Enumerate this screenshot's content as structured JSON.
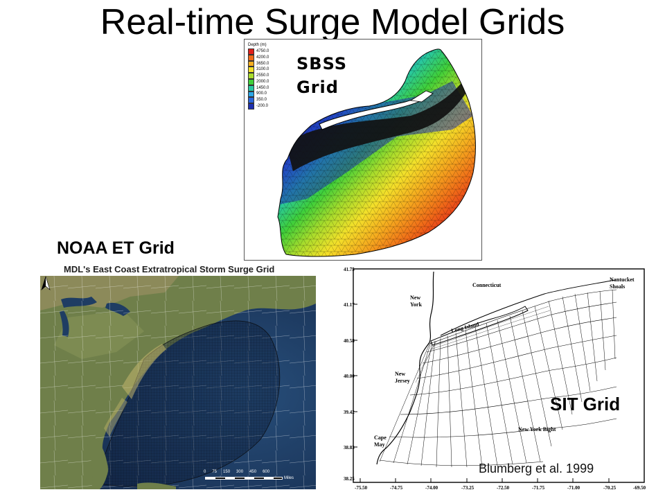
{
  "title": "Real-time Surge Model Grids",
  "sbss": {
    "label_line1": "SBSS",
    "label_line2": "Grid",
    "legend_title": "Depth (m)",
    "legend": [
      {
        "value": "4750.0",
        "color": "#e0201b"
      },
      {
        "value": "4200.0",
        "color": "#f06a18"
      },
      {
        "value": "3650.0",
        "color": "#f5ad1f"
      },
      {
        "value": "3100.0",
        "color": "#f3e02a"
      },
      {
        "value": "2550.0",
        "color": "#a8dc2c"
      },
      {
        "value": "2000.0",
        "color": "#3fcf3a"
      },
      {
        "value": "1450.0",
        "color": "#28c7a2"
      },
      {
        "value": "900.0",
        "color": "#2aa6e6"
      },
      {
        "value": "350.0",
        "color": "#2a66dc"
      },
      {
        "value": "-200.0",
        "color": "#1e2fb0"
      }
    ]
  },
  "noaa": {
    "label": "NOAA ET Grid",
    "caption": "MDL's East Coast Extratropical Storm Surge Grid",
    "scale_ticks": [
      "0",
      "75",
      "150",
      "300",
      "450",
      "600"
    ],
    "scale_unit": "Miles"
  },
  "sit": {
    "label": "SIT Grid",
    "y_ticks": [
      "41.75",
      "41.17",
      "40.58",
      "40.00",
      "39.42",
      "38.83",
      "38.25"
    ],
    "x_ticks": [
      "-75.50",
      "-74.75",
      "-74.00",
      "-73.25",
      "-72.50",
      "-71.75",
      "-71.00",
      "-70.25",
      "-69.50"
    ],
    "places": {
      "connecticut": "Connecticut",
      "nantucket_1": "Nantucket",
      "nantucket_2": "Shoals",
      "new_york_1": "New",
      "new_york_2": "York",
      "long_island": "Long Island",
      "new_jersey_1": "New",
      "new_jersey_2": "Jersey",
      "bight": "New York Bight",
      "cape_may_1": "Cape",
      "cape_may_2": "May"
    }
  },
  "citation": "Blumberg et al. 1999"
}
